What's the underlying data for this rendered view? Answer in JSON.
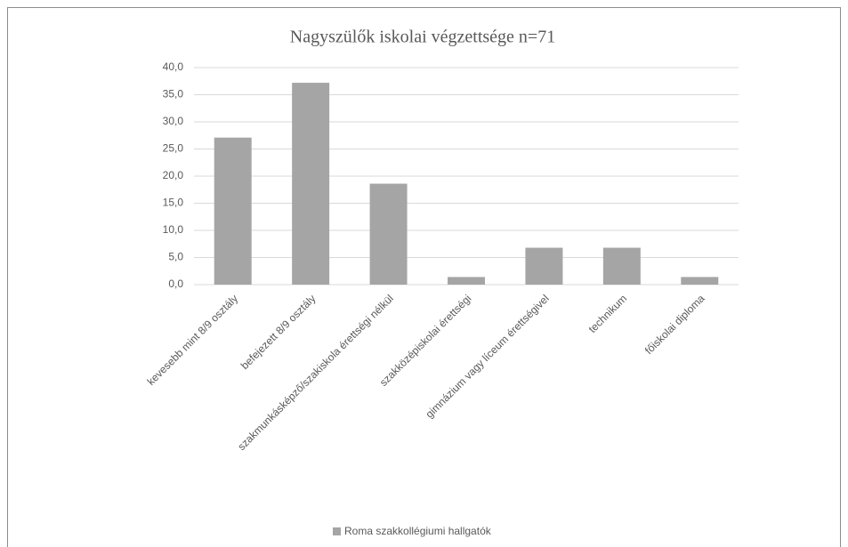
{
  "chart_data": {
    "type": "bar",
    "title": "Nagyszülők iskolai végzettsége n=71",
    "categories": [
      "kevesebb mint 8/9 osztály",
      "befejezett 8/9 osztály",
      "szakmunkásképző/szakiskola érettségi nélkül",
      "szakközépiskolai érettségi",
      "gimnázium vagy líceum érettségivel",
      "technikum",
      "főiskolai diploma"
    ],
    "series": [
      {
        "name": "Roma szakkollégiumi hallgatók",
        "color": "#a5a5a5",
        "values": [
          27.1,
          37.2,
          18.6,
          1.4,
          6.8,
          6.8,
          1.4
        ]
      }
    ],
    "ylim": [
      0,
      40
    ],
    "yticks": [
      {
        "value": 0,
        "label": "0,0"
      },
      {
        "value": 5,
        "label": "5,0"
      },
      {
        "value": 10,
        "label": "10,0"
      },
      {
        "value": 15,
        "label": "15,0"
      },
      {
        "value": 20,
        "label": "20,0"
      },
      {
        "value": 25,
        "label": "25,0"
      },
      {
        "value": 30,
        "label": "30,0"
      },
      {
        "value": 35,
        "label": "35,0"
      },
      {
        "value": 40,
        "label": "40,0"
      }
    ],
    "grid": true,
    "legend": "bottom"
  }
}
